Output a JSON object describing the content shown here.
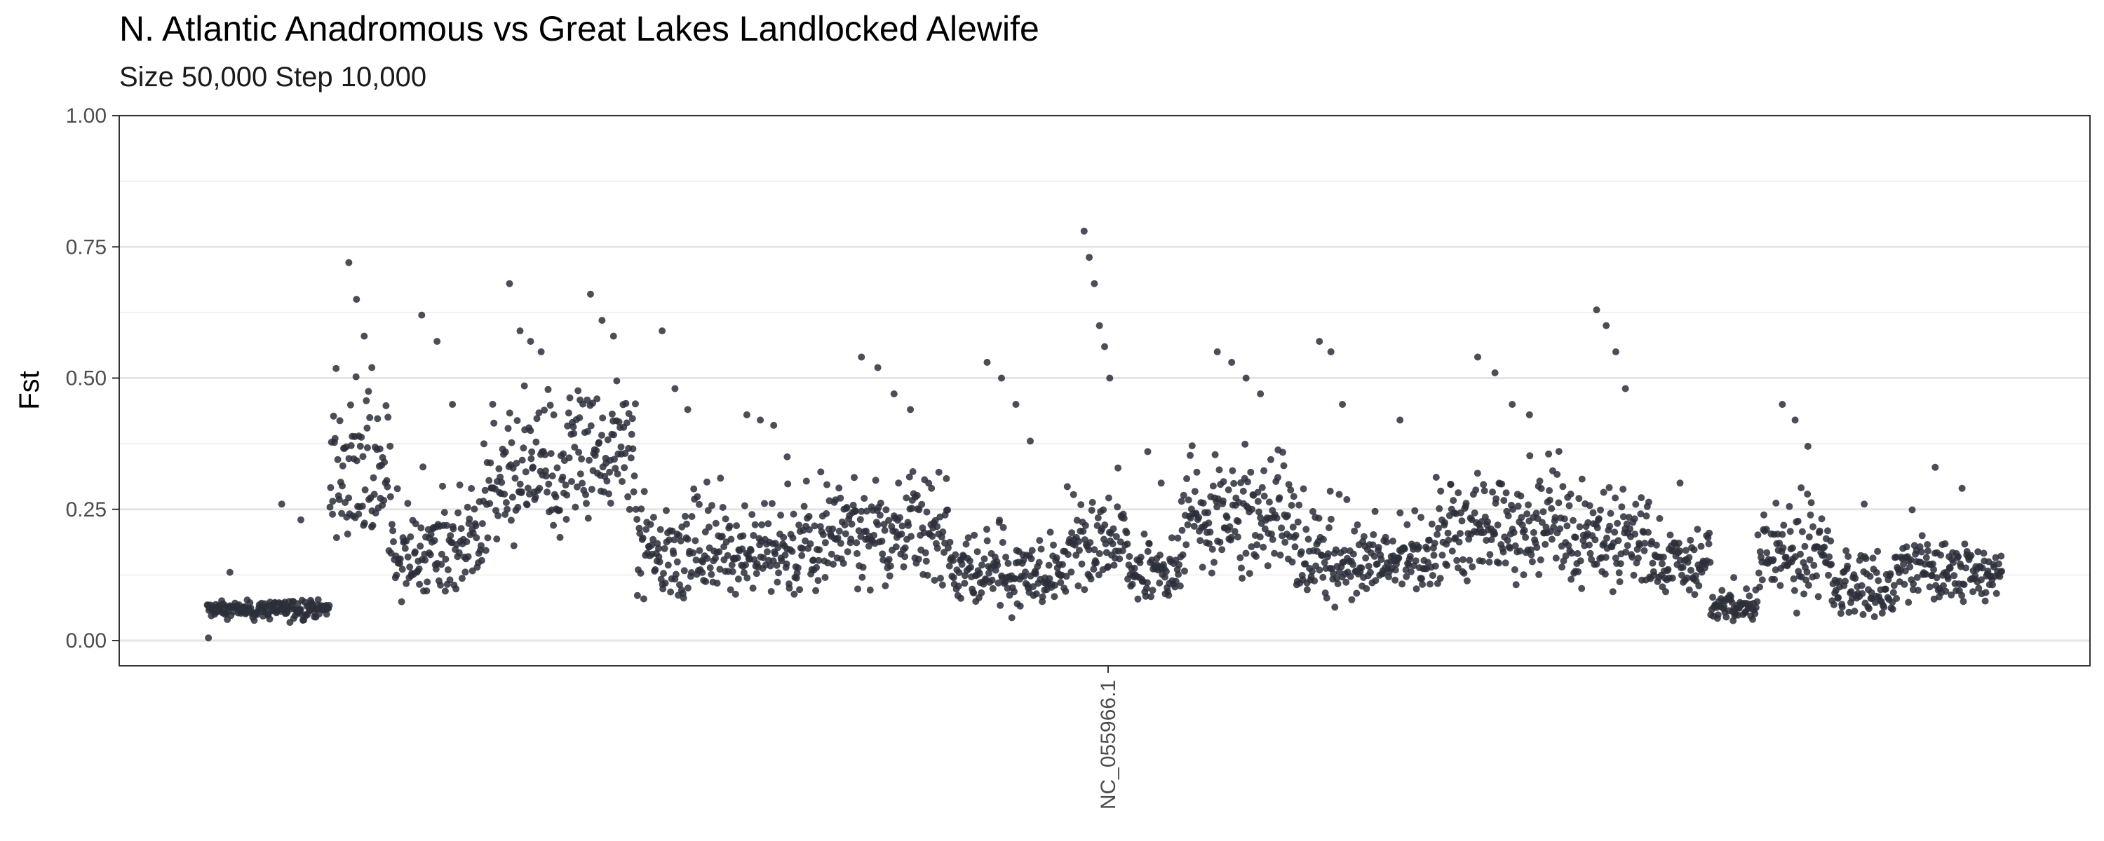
{
  "chart_data": {
    "type": "scatter",
    "title": "N. Atlantic Anadromous vs Great Lakes Landlocked Alewife",
    "subtitle": "Size 50,000 Step 10,000",
    "ylabel": "Fst",
    "xlabel": "",
    "ylim": [
      0.0,
      1.0
    ],
    "y_ticks": [
      "0.00",
      "0.25",
      "0.50",
      "0.75",
      "1.00"
    ],
    "x_tick_labels": [
      "NC_055966.1"
    ],
    "grid": true,
    "legend": "none",
    "point_color": "#2b2f3a",
    "x_range": [
      0,
      2340
    ],
    "segments": [
      {
        "start": 0,
        "end": 60,
        "base": 0.06,
        "noise": 0.015,
        "spike": 0.0,
        "peaks": [
          0.13
        ]
      },
      {
        "start": 60,
        "end": 160,
        "base": 0.06,
        "noise": 0.02,
        "spike": 0.0,
        "peaks": [
          0.26,
          0.23
        ]
      },
      {
        "start": 160,
        "end": 240,
        "base": 0.3,
        "noise": 0.12,
        "spike": 0.2,
        "peaks": [
          0.72,
          0.65,
          0.58,
          0.52
        ]
      },
      {
        "start": 240,
        "end": 360,
        "base": 0.16,
        "noise": 0.07,
        "spike": 0.12,
        "peaks": [
          0.62,
          0.57,
          0.45
        ]
      },
      {
        "start": 360,
        "end": 470,
        "base": 0.28,
        "noise": 0.1,
        "spike": 0.15,
        "peaks": [
          0.68,
          0.59,
          0.57,
          0.55
        ]
      },
      {
        "start": 470,
        "end": 560,
        "base": 0.35,
        "noise": 0.1,
        "spike": 0.15,
        "peaks": [
          0.66,
          0.61,
          0.58
        ]
      },
      {
        "start": 560,
        "end": 660,
        "base": 0.16,
        "noise": 0.08,
        "spike": 0.1,
        "peaks": [
          0.59,
          0.48,
          0.44
        ]
      },
      {
        "start": 660,
        "end": 800,
        "base": 0.16,
        "noise": 0.07,
        "spike": 0.08,
        "peaks": [
          0.43,
          0.42,
          0.41,
          0.35
        ]
      },
      {
        "start": 800,
        "end": 970,
        "base": 0.2,
        "noise": 0.08,
        "spike": 0.1,
        "peaks": [
          0.54,
          0.52,
          0.47,
          0.44
        ]
      },
      {
        "start": 970,
        "end": 1120,
        "base": 0.12,
        "noise": 0.05,
        "spike": 0.1,
        "peaks": [
          0.53,
          0.5,
          0.45,
          0.38
        ]
      },
      {
        "start": 1120,
        "end": 1200,
        "base": 0.18,
        "noise": 0.08,
        "spike": 0.12,
        "peaks": [
          0.78,
          0.73,
          0.68,
          0.6,
          0.56,
          0.5
        ]
      },
      {
        "start": 1200,
        "end": 1270,
        "base": 0.12,
        "noise": 0.05,
        "spike": 0.08,
        "peaks": [
          0.36,
          0.3
        ]
      },
      {
        "start": 1270,
        "end": 1420,
        "base": 0.22,
        "noise": 0.09,
        "spike": 0.12,
        "peaks": [
          0.55,
          0.53,
          0.5,
          0.47
        ]
      },
      {
        "start": 1420,
        "end": 1510,
        "base": 0.14,
        "noise": 0.06,
        "spike": 0.12,
        "peaks": [
          0.57,
          0.55,
          0.45
        ]
      },
      {
        "start": 1510,
        "end": 1600,
        "base": 0.15,
        "noise": 0.05,
        "spike": 0.08,
        "peaks": [
          0.42
        ]
      },
      {
        "start": 1600,
        "end": 1780,
        "base": 0.2,
        "noise": 0.08,
        "spike": 0.12,
        "peaks": [
          0.54,
          0.51,
          0.45,
          0.43
        ]
      },
      {
        "start": 1780,
        "end": 1880,
        "base": 0.18,
        "noise": 0.07,
        "spike": 0.12,
        "peaks": [
          0.63,
          0.6,
          0.55,
          0.48
        ]
      },
      {
        "start": 1880,
        "end": 1960,
        "base": 0.14,
        "noise": 0.05,
        "spike": 0.06,
        "peaks": [
          0.3
        ]
      },
      {
        "start": 1960,
        "end": 2020,
        "base": 0.06,
        "noise": 0.02,
        "spike": 0.03,
        "peaks": [
          0.12
        ]
      },
      {
        "start": 2020,
        "end": 2120,
        "base": 0.15,
        "noise": 0.07,
        "spike": 0.1,
        "peaks": [
          0.45,
          0.42,
          0.37
        ]
      },
      {
        "start": 2120,
        "end": 2200,
        "base": 0.09,
        "noise": 0.04,
        "spike": 0.06,
        "peaks": [
          0.26
        ]
      },
      {
        "start": 2200,
        "end": 2340,
        "base": 0.13,
        "noise": 0.05,
        "spike": 0.06,
        "peaks": [
          0.33,
          0.29
        ]
      }
    ]
  }
}
